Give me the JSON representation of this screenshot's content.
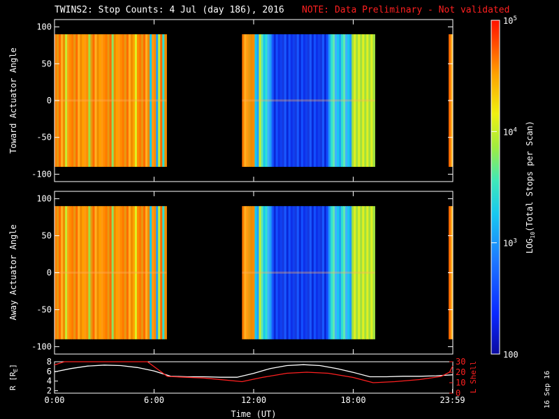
{
  "chart_data": [
    {
      "type": "heatmap",
      "title": "TWINS2: Stop Counts:  4 Jul (day 186), 2016",
      "note": "NOTE: Data Preliminary - Not validated",
      "ylabel": "Toward Actuator Angle",
      "ylim": [
        -110,
        110
      ],
      "yticks": [
        "100",
        "50",
        "0",
        "-50",
        "-100"
      ],
      "ytick_values": [
        100,
        50,
        0,
        -50,
        -100
      ],
      "data_ylim": [
        -90,
        90
      ],
      "xlim": [
        0,
        24
      ],
      "grid": false,
      "data_blocks": [
        {
          "start": 0.0,
          "end": 6.75,
          "level": "high"
        },
        {
          "start": 11.3,
          "end": 19.3,
          "level": "mixed"
        },
        {
          "start": 23.75,
          "end": 24.0,
          "level": "high"
        }
      ]
    },
    {
      "type": "heatmap",
      "ylabel": "Away Actuator Angle",
      "ylim": [
        -110,
        110
      ],
      "yticks": [
        "100",
        "50",
        "0",
        "-50",
        "-100"
      ],
      "ytick_values": [
        100,
        50,
        0,
        -50,
        -100
      ],
      "data_ylim": [
        -90,
        90
      ],
      "xlim": [
        0,
        24
      ],
      "grid": false,
      "data_blocks": [
        {
          "start": 0.0,
          "end": 6.75,
          "level": "high"
        },
        {
          "start": 11.3,
          "end": 19.3,
          "level": "mixed"
        },
        {
          "start": 23.75,
          "end": 24.0,
          "level": "high"
        }
      ]
    },
    {
      "type": "line",
      "xlabel": "Time (UT)",
      "xticks": [
        "0:00",
        "6:00",
        "12:00",
        "18:00",
        "23:59"
      ],
      "xtick_values": [
        0,
        6,
        12,
        18,
        23.98
      ],
      "xlim": [
        0,
        24
      ],
      "ylabel": "R [RE]",
      "ylabel_sub": "E",
      "ylim": [
        1.5,
        8
      ],
      "yticks": [
        "8",
        "6",
        "4",
        "2"
      ],
      "ytick_values": [
        8,
        6,
        4,
        2
      ],
      "ylabel_right": "L Shell",
      "ylim_right": [
        0,
        30
      ],
      "yticks_right": [
        "30",
        "20",
        "10",
        "0"
      ],
      "ytick_values_right": [
        30,
        20,
        10,
        0
      ],
      "series": [
        {
          "axis": "left",
          "color": "#ffffff",
          "x": [
            0,
            1,
            2,
            3,
            4,
            5,
            6,
            7,
            8,
            9,
            10,
            11,
            12,
            13,
            14,
            15,
            16,
            17,
            18,
            19,
            20,
            21,
            22,
            23,
            24
          ],
          "y": [
            5.9,
            6.6,
            7.1,
            7.3,
            7.2,
            6.8,
            6.1,
            5.0,
            4.9,
            4.9,
            4.8,
            4.8,
            5.6,
            6.6,
            7.2,
            7.4,
            7.2,
            6.6,
            5.8,
            4.9,
            4.9,
            5.0,
            5.0,
            5.1,
            5.3
          ]
        },
        {
          "axis": "right",
          "color": "#ff2020",
          "x": [
            0,
            0.6,
            5.6,
            6.8,
            7.5,
            9,
            11.3,
            12.5,
            14,
            15.2,
            16.5,
            18,
            19.2,
            20.5,
            22,
            23.3,
            23.8,
            24
          ],
          "y": [
            27,
            30,
            30,
            16,
            15.5,
            14.5,
            11,
            15,
            19,
            20,
            19,
            15,
            10,
            11,
            13,
            16,
            20,
            26
          ]
        }
      ]
    },
    {
      "type": "colorbar",
      "label": "LOG10(Total Stops per Scan)",
      "label_main": "LOG",
      "label_sub": "10",
      "label_rest": "(Total Stops per Scan)",
      "scale": "log",
      "range": [
        100,
        100000
      ],
      "ticks": [
        {
          "base": "10",
          "exp": "5",
          "value": 100000
        },
        {
          "base": "10",
          "exp": "4",
          "value": 10000
        },
        {
          "base": "10",
          "exp": "3",
          "value": 1000
        },
        {
          "base": "100",
          "exp": "",
          "value": 100
        }
      ]
    }
  ],
  "stamp": "16 Sep 16"
}
